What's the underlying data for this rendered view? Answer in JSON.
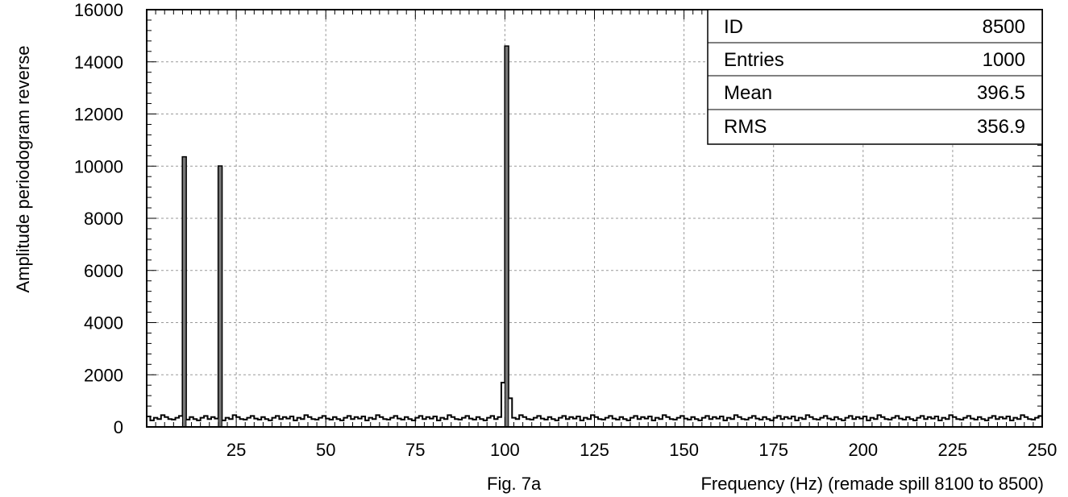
{
  "chart_data": {
    "type": "bar",
    "style": "step-histogram",
    "xlabel": "Frequency (Hz) (remade spill 8100 to 8500)",
    "figure_label": "Fig. 7a",
    "ylabel": "Amplitude periodogram reverse",
    "xlim": [
      0,
      250
    ],
    "ylim": [
      0,
      16000
    ],
    "xticks": [
      25,
      50,
      75,
      100,
      125,
      150,
      175,
      200,
      225,
      250
    ],
    "yticks": [
      0,
      2000,
      4000,
      6000,
      8000,
      10000,
      12000,
      14000,
      16000
    ],
    "grid": true,
    "bin_width": 1,
    "baseline": [
      400,
      250,
      350,
      300,
      450,
      380,
      300,
      280,
      350,
      420,
      320,
      280,
      380,
      300,
      250,
      350,
      420,
      300,
      380,
      320
    ],
    "peaks": [
      {
        "x": 10,
        "value": 10350
      },
      {
        "x": 20,
        "value": 10000
      },
      {
        "x": 99,
        "value": 1700
      },
      {
        "x": 100,
        "value": 14600
      },
      {
        "x": 101,
        "value": 1100
      }
    ],
    "stats_box": {
      "rows": [
        {
          "label": "ID",
          "value": "8500"
        },
        {
          "label": "Entries",
          "value": "1000"
        },
        {
          "label": "Mean",
          "value": "396.5"
        },
        {
          "label": "RMS",
          "value": "356.9"
        }
      ]
    }
  }
}
